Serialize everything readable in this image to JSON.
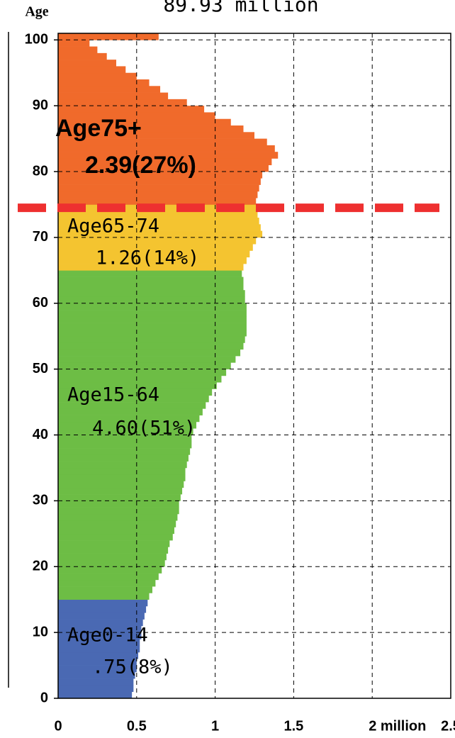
{
  "chart_data": {
    "type": "bar",
    "orientation": "horizontal",
    "title": "89.93 million",
    "ylabel": "Age",
    "xlim": [
      0,
      2.5
    ],
    "xticks": [
      0,
      0.5,
      1,
      1.5,
      {
        "value": 2,
        "label": "2 million"
      },
      2.5
    ],
    "ylim": [
      0,
      101
    ],
    "yticks": [
      0,
      10,
      20,
      30,
      40,
      50,
      60,
      70,
      80,
      90,
      100
    ],
    "grid": true,
    "threshold": 74.5,
    "threshold_color": "#ee3030",
    "series": [
      {
        "name": "Age0-14",
        "label": ".75(8%)",
        "color": "#4a69b3",
        "y": [
          0,
          1,
          2,
          3,
          4,
          5,
          6,
          7,
          8,
          9,
          10,
          11,
          12,
          13,
          14
        ],
        "values": [
          0.47,
          0.48,
          0.48,
          0.49,
          0.5,
          0.5,
          0.51,
          0.52,
          0.52,
          0.53,
          0.53,
          0.54,
          0.55,
          0.56,
          0.57
        ]
      },
      {
        "name": "Age15-64",
        "label": "4.60(51%)",
        "color": "#6dbd45",
        "y": [
          15,
          16,
          17,
          18,
          19,
          20,
          21,
          22,
          23,
          24,
          25,
          26,
          27,
          28,
          29,
          30,
          31,
          32,
          33,
          34,
          35,
          36,
          37,
          38,
          39,
          40,
          41,
          42,
          43,
          44,
          45,
          46,
          47,
          48,
          49,
          50,
          51,
          52,
          53,
          54,
          55,
          56,
          57,
          58,
          59,
          60,
          61,
          62,
          63,
          64
        ],
        "values": [
          0.58,
          0.6,
          0.62,
          0.64,
          0.66,
          0.68,
          0.69,
          0.7,
          0.71,
          0.73,
          0.74,
          0.75,
          0.76,
          0.77,
          0.77,
          0.78,
          0.79,
          0.8,
          0.81,
          0.81,
          0.82,
          0.83,
          0.84,
          0.85,
          0.85,
          0.86,
          0.88,
          0.9,
          0.92,
          0.94,
          0.96,
          0.98,
          1.01,
          1.04,
          1.07,
          1.1,
          1.13,
          1.16,
          1.18,
          1.19,
          1.2,
          1.2,
          1.2,
          1.2,
          1.2,
          1.19,
          1.19,
          1.18,
          1.18,
          1.17
        ]
      },
      {
        "name": "Age65-74",
        "label": "1.26(14%)",
        "color": "#f4c430",
        "y": [
          65,
          66,
          67,
          68,
          69,
          70,
          71,
          72,
          73,
          74
        ],
        "values": [
          1.18,
          1.2,
          1.22,
          1.24,
          1.26,
          1.3,
          1.29,
          1.28,
          1.27,
          1.27
        ]
      },
      {
        "name": "Age75+",
        "label": "2.39(27%)",
        "color": "#f06a2b",
        "y": [
          75,
          76,
          77,
          78,
          79,
          80,
          81,
          82,
          83,
          84,
          85,
          86,
          87,
          88,
          89,
          90,
          91,
          92,
          93,
          94,
          95,
          96,
          97,
          98,
          99,
          100
        ],
        "values": [
          1.26,
          1.27,
          1.28,
          1.29,
          1.3,
          1.34,
          1.36,
          1.4,
          1.38,
          1.33,
          1.25,
          1.18,
          1.1,
          1.0,
          0.93,
          0.82,
          0.7,
          0.65,
          0.58,
          0.5,
          0.43,
          0.37,
          0.31,
          0.25,
          0.2,
          0.64
        ]
      }
    ]
  }
}
